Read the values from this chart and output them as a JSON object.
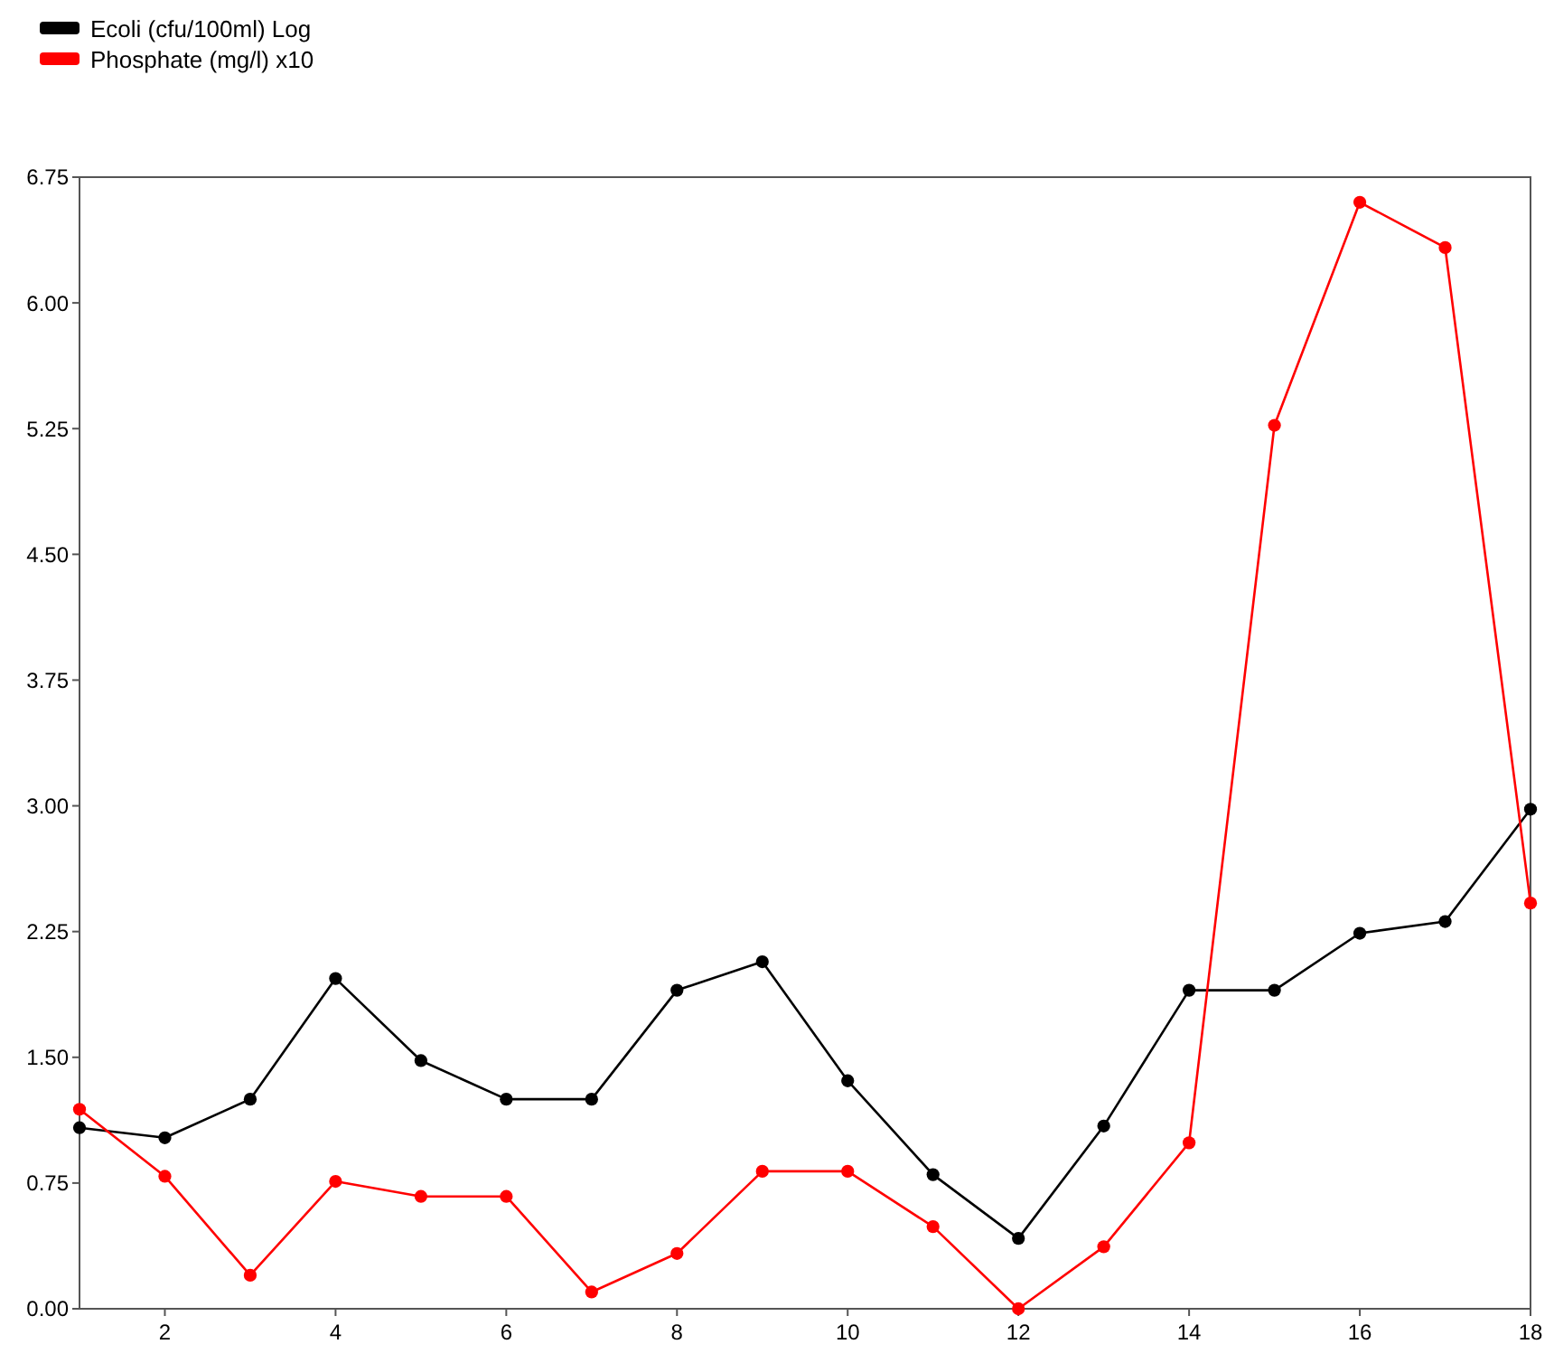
{
  "chart_data": {
    "type": "line",
    "x": [
      1,
      2,
      3,
      4,
      5,
      6,
      7,
      8,
      9,
      10,
      11,
      12,
      13,
      14,
      15,
      16,
      17,
      18
    ],
    "series": [
      {
        "name": "Ecoli (cfu/100ml) Log",
        "color": "#000000",
        "values": [
          1.08,
          1.02,
          1.25,
          1.97,
          1.48,
          1.25,
          1.25,
          1.9,
          2.07,
          1.36,
          0.8,
          0.42,
          1.09,
          1.9,
          1.9,
          2.24,
          2.31,
          2.98
        ]
      },
      {
        "name": "Phosphate (mg/l) x10",
        "color": "#ff0000",
        "values": [
          1.19,
          0.79,
          0.2,
          0.76,
          0.67,
          0.67,
          0.1,
          0.33,
          0.82,
          0.82,
          0.49,
          0,
          0.37,
          0.99,
          5.27,
          6.6,
          6.33,
          2.42
        ]
      }
    ],
    "xlim": [
      1,
      18
    ],
    "xticks": [
      2,
      4,
      6,
      8,
      10,
      12,
      14,
      16,
      18
    ],
    "ylim": [
      0,
      6.75
    ],
    "yticks": [
      {
        "value": 0,
        "label": "0.00"
      },
      {
        "value": 0.75,
        "label": "0.75"
      },
      {
        "value": 1.5,
        "label": "1.50"
      },
      {
        "value": 2.25,
        "label": "2.25"
      },
      {
        "value": 3,
        "label": "3.00"
      },
      {
        "value": 3.75,
        "label": "3.75"
      },
      {
        "value": 4.5,
        "label": "4.50"
      },
      {
        "value": 5.25,
        "label": "5.25"
      },
      {
        "value": 6,
        "label": "6.00"
      },
      {
        "value": 6.75,
        "label": "6.75"
      }
    ],
    "marker": "circle",
    "legend": "top left",
    "grid": false
  }
}
